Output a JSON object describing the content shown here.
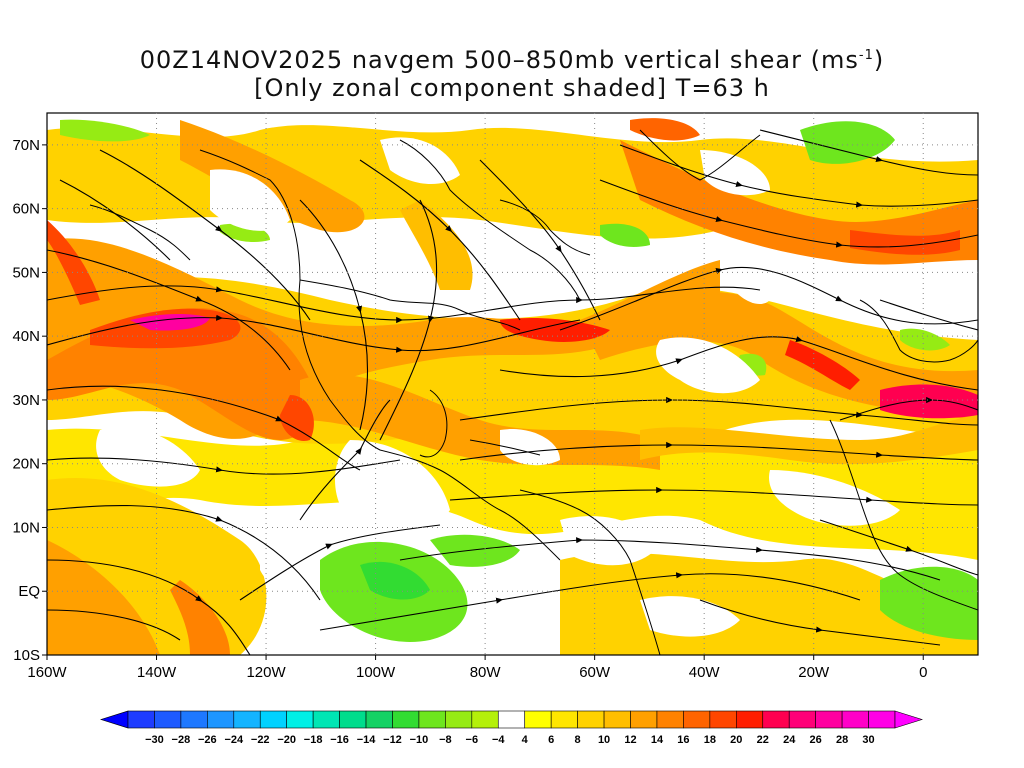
{
  "title": {
    "line1_prefix": "00Z14NOV2025 navgem 500–850mb vertical shear (ms",
    "line1_sup": "-1",
    "line1_suffix": ")",
    "line2": "[Only zonal component shaded] T=63 h"
  },
  "axes": {
    "lat_labels": [
      "70N",
      "60N",
      "50N",
      "40N",
      "30N",
      "20N",
      "10N",
      "EQ",
      "10S"
    ],
    "lon_labels": [
      "160W",
      "140W",
      "120W",
      "100W",
      "80W",
      "60W",
      "40W",
      "20W",
      "0"
    ],
    "lat_values": [
      70,
      60,
      50,
      40,
      30,
      20,
      10,
      0,
      -10
    ],
    "lon_values": [
      -160,
      -140,
      -120,
      -100,
      -80,
      -60,
      -40,
      -20,
      0
    ],
    "lon_range": [
      -160,
      10
    ],
    "lat_range": [
      -10,
      75
    ],
    "grid": "dotted"
  },
  "colorbar": {
    "labels": [
      "-30",
      "-28",
      "-26",
      "-24",
      "-22",
      "-20",
      "-18",
      "-16",
      "-14",
      "-12",
      "-10",
      "-8",
      "-6",
      "-4",
      "4",
      "6",
      "8",
      "10",
      "12",
      "14",
      "16",
      "18",
      "20",
      "22",
      "24",
      "26",
      "28",
      "30"
    ],
    "colors": [
      "#1e3cff",
      "#1e5aff",
      "#1e78ff",
      "#1e96ff",
      "#14b4ff",
      "#00d2ff",
      "#00f0e6",
      "#00e6b4",
      "#00dc8c",
      "#14d264",
      "#32dc32",
      "#6ee61e",
      "#96eb14",
      "#b4f00a",
      "#ffffff",
      "#ffff00",
      "#ffe600",
      "#ffd200",
      "#ffbe00",
      "#ffa000",
      "#ff8200",
      "#ff6400",
      "#ff4600",
      "#ff1e00",
      "#ff0050",
      "#ff0078",
      "#ff00a0",
      "#ff00c8",
      "#ff00e6"
    ],
    "under_color": "#0000ff",
    "over_color": "#ff00ff"
  },
  "colors": {
    "land_line": "#000000",
    "streamline": "#000000"
  }
}
